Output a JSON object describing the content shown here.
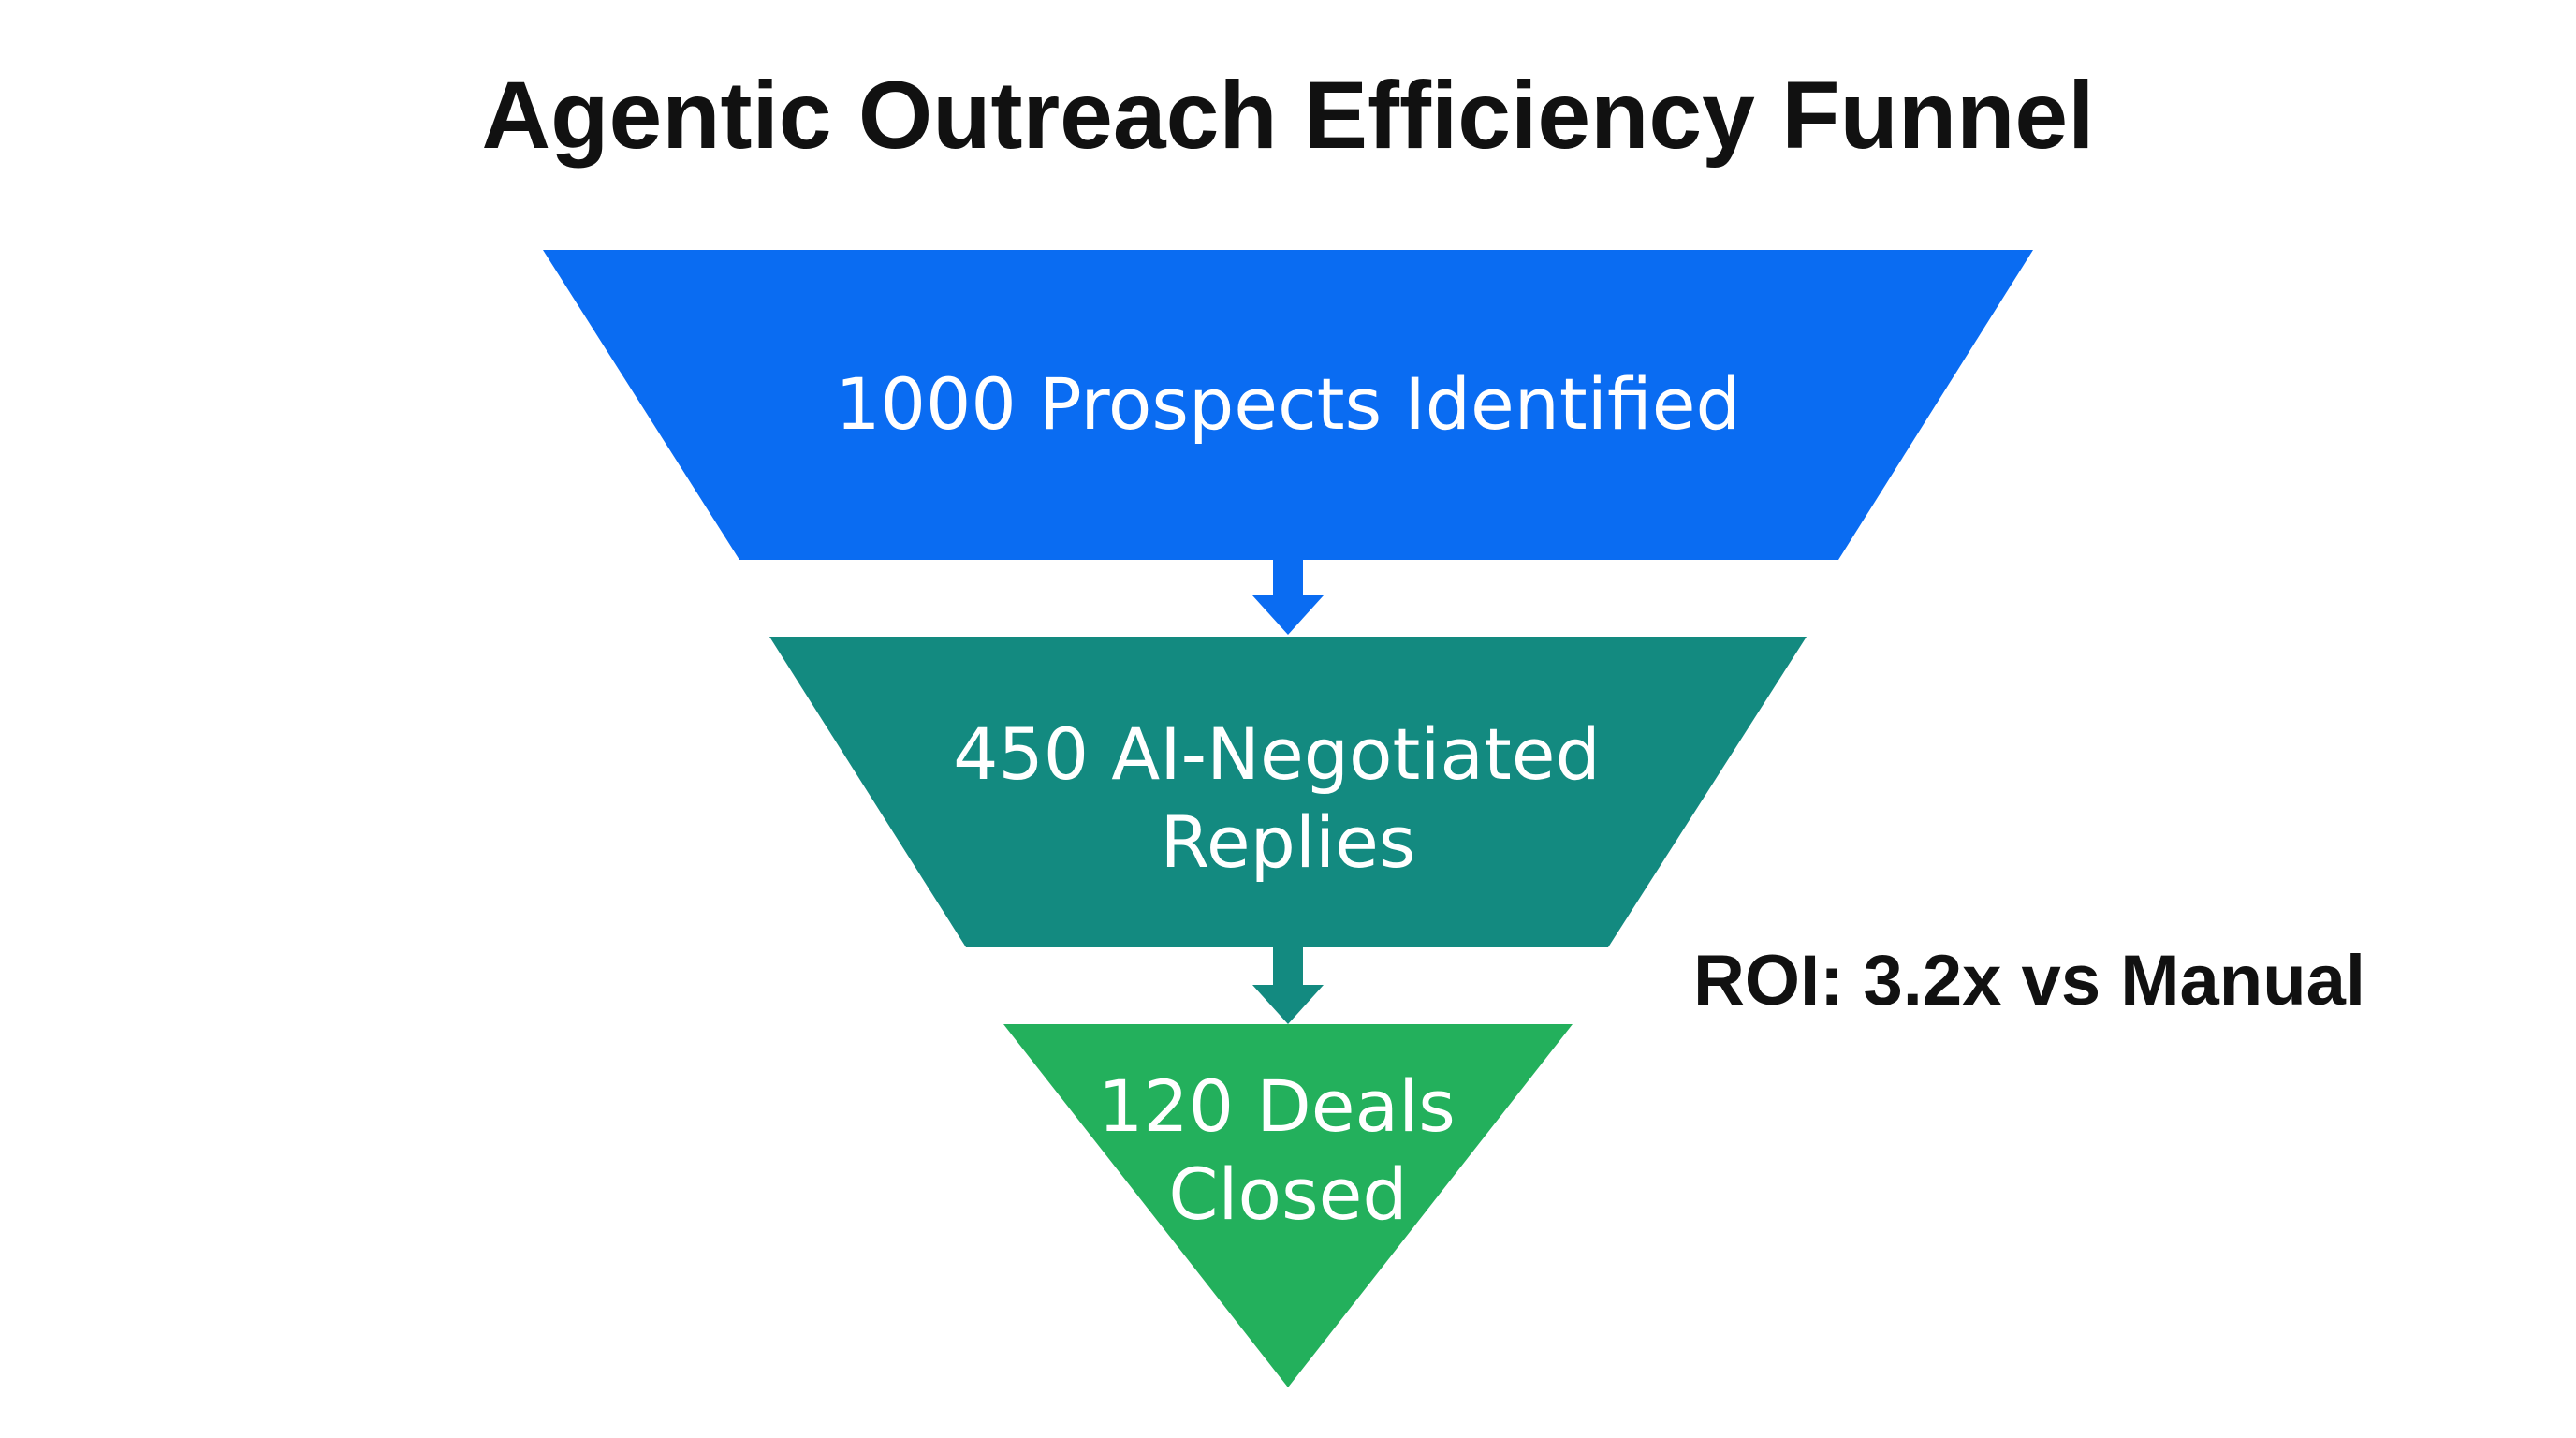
{
  "title": "Agentic Outreach Efficiency Funnel",
  "colors": {
    "stage_1": "#0a6cf2",
    "stage_2": "#138a80",
    "stage_3": "#23b05c",
    "text_light": "#ffffff",
    "text_dark": "#111111"
  },
  "stages": [
    {
      "value": 1000,
      "lines": [
        "1000 Prospects Identified"
      ]
    },
    {
      "value": 450,
      "lines": [
        "450 AI-Negotiated",
        "Replies"
      ]
    },
    {
      "value": 120,
      "lines": [
        "120 Deals",
        "Closed"
      ]
    }
  ],
  "annotation": "ROI: 3.2x vs Manual"
}
